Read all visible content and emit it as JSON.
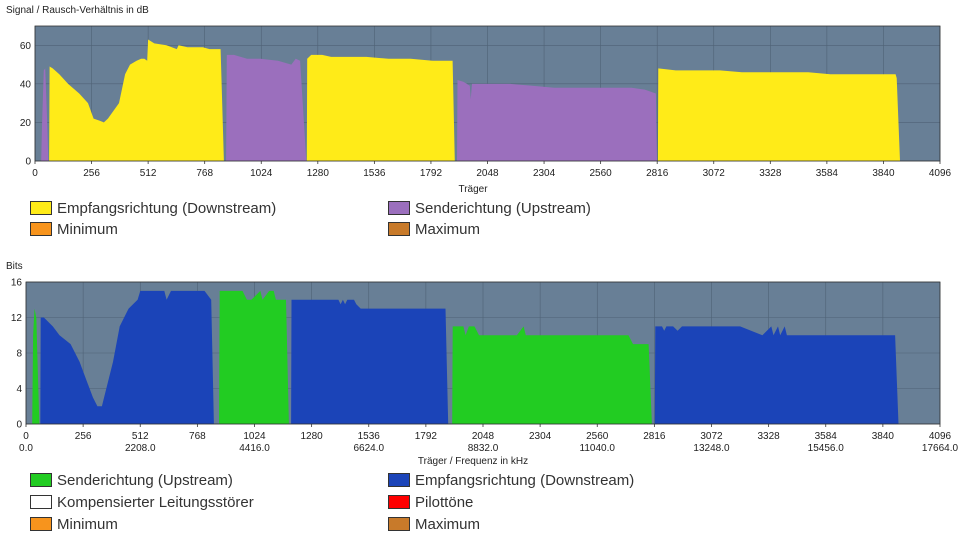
{
  "chart_data": [
    {
      "type": "area",
      "ylabel": "Signal / Rausch-Verhältnis in dB",
      "xlabel": "Träger",
      "xlim": [
        0,
        4096
      ],
      "ylim": [
        0,
        70
      ],
      "x_ticks": [
        "0",
        "256",
        "512",
        "768",
        "1024",
        "1280",
        "1536",
        "1792",
        "2048",
        "2304",
        "2560",
        "2816",
        "3072",
        "3328",
        "3584",
        "3840",
        "4096"
      ],
      "y_ticks": [
        "0",
        "20",
        "40",
        "60"
      ],
      "plot_bg": "#687f96",
      "grid": true,
      "series": [
        {
          "name": "Empfangsrichtung (Downstream)",
          "color": "#ffeb18",
          "segments": [
            [
              [
                64,
                0
              ],
              [
                66,
                49
              ],
              [
                80,
                48
              ],
              [
                110,
                45
              ],
              [
                150,
                40
              ],
              [
                200,
                35
              ],
              [
                240,
                30
              ],
              [
                265,
                22
              ],
              [
                290,
                21
              ],
              [
                312,
                20
              ],
              [
                330,
                22
              ],
              [
                380,
                30
              ],
              [
                408,
                45
              ],
              [
                430,
                50
              ],
              [
                460,
                52
              ],
              [
                480,
                53
              ],
              [
                495,
                53
              ],
              [
                508,
                52
              ],
              [
                512,
                63
              ],
              [
                540,
                61
              ],
              [
                595,
                60
              ],
              [
                642,
                58
              ],
              [
                650,
                60
              ],
              [
                690,
                59
              ],
              [
                760,
                59
              ],
              [
                790,
                58
              ],
              [
                840,
                58
              ],
              [
                855,
                0
              ]
            ],
            [
              [
                1230,
                0
              ],
              [
                1232,
                53
              ],
              [
                1250,
                55
              ],
              [
                1300,
                55
              ],
              [
                1340,
                54
              ],
              [
                1400,
                54
              ],
              [
                1500,
                54
              ],
              [
                1600,
                53
              ],
              [
                1700,
                53
              ],
              [
                1800,
                52
              ],
              [
                1890,
                52
              ],
              [
                1900,
                0
              ]
            ],
            [
              [
                2819,
                0
              ],
              [
                2821,
                48
              ],
              [
                2900,
                47
              ],
              [
                3000,
                47
              ],
              [
                3100,
                47
              ],
              [
                3200,
                46
              ],
              [
                3300,
                46
              ],
              [
                3400,
                46
              ],
              [
                3500,
                46
              ],
              [
                3600,
                45
              ],
              [
                3700,
                45
              ],
              [
                3800,
                45
              ],
              [
                3895,
                45
              ],
              [
                3900,
                43
              ],
              [
                3915,
                0
              ]
            ]
          ]
        },
        {
          "name": "Senderichtung (Upstream)",
          "color": "#9b6fbd",
          "segments": [
            [
              [
                28,
                0
              ],
              [
                32,
                20
              ],
              [
                40,
                47
              ],
              [
                46,
                48
              ],
              [
                55,
                20
              ],
              [
                60,
                0
              ]
            ],
            [
              [
                865,
                0
              ],
              [
                868,
                55
              ],
              [
                900,
                55
              ],
              [
                960,
                53
              ],
              [
                1020,
                53
              ],
              [
                1100,
                52
              ],
              [
                1160,
                50
              ],
              [
                1180,
                53
              ],
              [
                1200,
                52
              ],
              [
                1228,
                0
              ]
            ],
            [
              [
                1910,
                0
              ],
              [
                1912,
                42
              ],
              [
                1940,
                41
              ],
              [
                1968,
                39
              ],
              [
                1972,
                32
              ],
              [
                1978,
                40
              ],
              [
                2050,
                40
              ],
              [
                2150,
                40
              ],
              [
                2250,
                39
              ],
              [
                2350,
                38
              ],
              [
                2450,
                38
              ],
              [
                2550,
                38
              ],
              [
                2700,
                38
              ],
              [
                2760,
                37
              ],
              [
                2810,
                35
              ],
              [
                2815,
                0
              ]
            ]
          ]
        },
        {
          "name": "Minimum",
          "color": "#f7941d",
          "segments": []
        },
        {
          "name": "Maximum",
          "color": "#c87a2a",
          "segments": []
        }
      ]
    },
    {
      "type": "area",
      "ylabel": "Bits",
      "xlabel": "Träger / Frequenz in kHz",
      "xlim": [
        0,
        4096
      ],
      "ylim": [
        0,
        16
      ],
      "x_ticks": [
        "0",
        "256",
        "512",
        "768",
        "1024",
        "1280",
        "1536",
        "1792",
        "2048",
        "2304",
        "2560",
        "2816",
        "3072",
        "3328",
        "3584",
        "3840",
        "4096"
      ],
      "freq_ticks": [
        "0.0",
        "",
        "2208.0",
        "",
        "4416.0",
        "",
        "6624.0",
        "",
        "8832.0",
        "",
        "11040.0",
        "",
        "13248.0",
        "",
        "15456.0",
        "",
        "17664.0"
      ],
      "y_ticks": [
        "0",
        "4",
        "8",
        "12",
        "16"
      ],
      "plot_bg": "#687f96",
      "grid": true,
      "series": [
        {
          "name": "Senderichtung (Upstream)",
          "color": "#22cc22",
          "segments": [
            [
              [
                28,
                0
              ],
              [
                32,
                10
              ],
              [
                38,
                13
              ],
              [
                46,
                12
              ],
              [
                55,
                4
              ],
              [
                60,
                0
              ]
            ],
            [
              [
                865,
                0
              ],
              [
                868,
                15
              ],
              [
                970,
                15
              ],
              [
                990,
                14
              ],
              [
                1010,
                14
              ],
              [
                1050,
                15
              ],
              [
                1060,
                14
              ],
              [
                1090,
                15
              ],
              [
                1110,
                15
              ],
              [
                1120,
                14
              ],
              [
                1165,
                14
              ],
              [
                1178,
                0
              ]
            ],
            [
              [
                1910,
                0
              ],
              [
                1912,
                11
              ],
              [
                1960,
                11
              ],
              [
                1970,
                10
              ],
              [
                1985,
                11
              ],
              [
                2010,
                11
              ],
              [
                2030,
                10
              ],
              [
                2200,
                10
              ],
              [
                2230,
                11
              ],
              [
                2240,
                10
              ],
              [
                2500,
                10
              ],
              [
                2700,
                10
              ],
              [
                2720,
                9
              ],
              [
                2790,
                9
              ],
              [
                2805,
                0
              ]
            ]
          ]
        },
        {
          "name": "Empfangsrichtung (Downstream)",
          "color": "#1b44b8",
          "segments": [
            [
              [
                64,
                0
              ],
              [
                66,
                12
              ],
              [
                80,
                12
              ],
              [
                120,
                11
              ],
              [
                150,
                10
              ],
              [
                200,
                9
              ],
              [
                240,
                7
              ],
              [
                270,
                5
              ],
              [
                300,
                3
              ],
              [
                320,
                2
              ],
              [
                340,
                2
              ],
              [
                350,
                3
              ],
              [
                390,
                7
              ],
              [
                420,
                11
              ],
              [
                460,
                13
              ],
              [
                500,
                14
              ],
              [
                512,
                15
              ],
              [
                620,
                15
              ],
              [
                630,
                14
              ],
              [
                650,
                15
              ],
              [
                800,
                15
              ],
              [
                830,
                14
              ],
              [
                842,
                0
              ]
            ],
            [
              [
                1188,
                0
              ],
              [
                1190,
                14
              ],
              [
                1250,
                14
              ],
              [
                1400,
                14
              ],
              [
                1410,
                13.5
              ],
              [
                1420,
                14
              ],
              [
                1430,
                13.5
              ],
              [
                1440,
                14
              ],
              [
                1470,
                14
              ],
              [
                1480,
                13.5
              ],
              [
                1500,
                13
              ],
              [
                1700,
                13
              ],
              [
                1880,
                13
              ],
              [
                1892,
                0
              ]
            ],
            [
              [
                2818,
                0
              ],
              [
                2820,
                11
              ],
              [
                2850,
                11
              ],
              [
                2860,
                10.5
              ],
              [
                2870,
                11
              ],
              [
                2900,
                11
              ],
              [
                2920,
                10.5
              ],
              [
                2940,
                11
              ],
              [
                3000,
                11
              ],
              [
                3100,
                11
              ],
              [
                3200,
                11
              ],
              [
                3300,
                10
              ],
              [
                3340,
                11
              ],
              [
                3350,
                10
              ],
              [
                3370,
                11
              ],
              [
                3380,
                10
              ],
              [
                3400,
                11
              ],
              [
                3410,
                10
              ],
              [
                3500,
                10
              ],
              [
                3700,
                10
              ],
              [
                3895,
                10
              ],
              [
                3910,
                0
              ]
            ]
          ]
        },
        {
          "name": "Kompensierter Leitungsstörer",
          "color": "#ffffff",
          "segments": []
        },
        {
          "name": "Pilottöne",
          "color": "#ff0000",
          "segments": []
        },
        {
          "name": "Minimum",
          "color": "#f7941d",
          "segments": []
        },
        {
          "name": "Maximum",
          "color": "#c87a2a",
          "segments": []
        }
      ]
    }
  ],
  "legends": [
    [
      {
        "label": "Empfangsrichtung (Downstream)",
        "color": "#ffeb18"
      },
      {
        "label": "Senderichtung (Upstream)",
        "color": "#9b6fbd"
      },
      {
        "label": "Minimum",
        "color": "#f7941d"
      },
      {
        "label": "Maximum",
        "color": "#c87a2a"
      }
    ],
    [
      {
        "label": "Senderichtung (Upstream)",
        "color": "#22cc22"
      },
      {
        "label": "Empfangsrichtung (Downstream)",
        "color": "#1b44b8"
      },
      {
        "label": "Kompensierter Leitungsstörer",
        "color": "#ffffff"
      },
      {
        "label": "Pilottöne",
        "color": "#ff0000"
      },
      {
        "label": "Minimum",
        "color": "#f7941d"
      },
      {
        "label": "Maximum",
        "color": "#c87a2a"
      }
    ]
  ]
}
